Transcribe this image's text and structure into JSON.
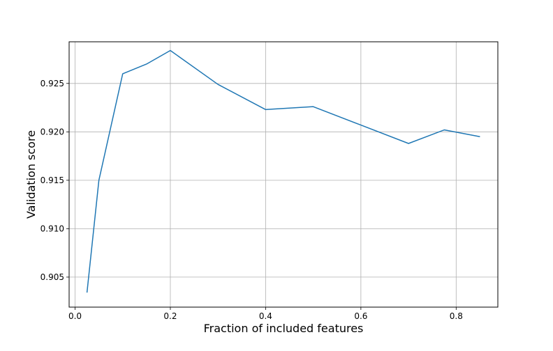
{
  "chart_data": {
    "type": "line",
    "title": "",
    "xlabel": "Fraction of included features",
    "ylabel": "Validation score",
    "xlim": [
      -0.0125,
      0.8875
    ],
    "ylim": [
      0.9019,
      0.9293
    ],
    "grid": true,
    "xticks": [
      0.0,
      0.2,
      0.4,
      0.6,
      0.8
    ],
    "xtick_labels": [
      "0.0",
      "0.2",
      "0.4",
      "0.6",
      "0.8"
    ],
    "yticks": [
      0.905,
      0.91,
      0.915,
      0.92,
      0.925
    ],
    "ytick_labels": [
      "0.905",
      "0.910",
      "0.915",
      "0.920",
      "0.925"
    ],
    "series": [
      {
        "color": "#1f77b4",
        "x": [
          0.025,
          0.05,
          0.1,
          0.15,
          0.2,
          0.3,
          0.4,
          0.5,
          0.6,
          0.7,
          0.775,
          0.85
        ],
        "y": [
          0.9034,
          0.915,
          0.926,
          0.927,
          0.9284,
          0.9249,
          0.9223,
          0.9226,
          0.9207,
          0.9188,
          0.9202,
          0.9195
        ]
      }
    ]
  }
}
